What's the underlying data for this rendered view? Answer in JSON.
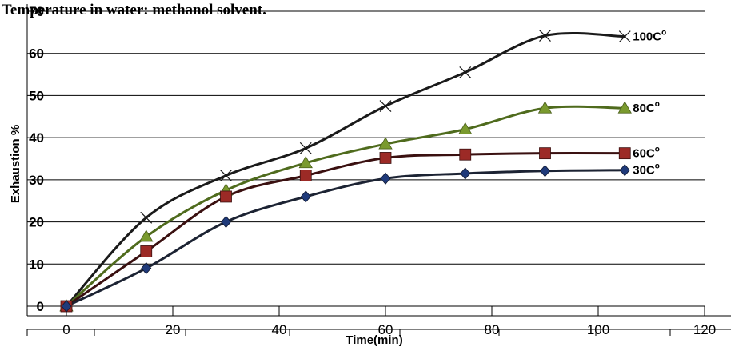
{
  "heading": "Temperature in water: methanol solvent.",
  "chart_data": {
    "type": "line",
    "xlabel": "Time(min)",
    "ylabel": "Exhaustion %",
    "xlim": [
      0,
      120
    ],
    "ylim": [
      0,
      70
    ],
    "xticks": [
      "0",
      "20",
      "40",
      "60",
      "80",
      "100",
      "120"
    ],
    "yticks": [
      "0",
      "10",
      "20",
      "30",
      "40",
      "50",
      "60",
      "70"
    ],
    "grid": "horizontal",
    "series": [
      {
        "name": "100C",
        "label_main": "100C",
        "label_sup": "o",
        "color": "#1a1a1a",
        "marker": "x",
        "x": [
          0,
          15,
          30,
          45,
          60,
          75,
          90,
          105
        ],
        "y": [
          0,
          21,
          31,
          37.5,
          47.5,
          55.5,
          64.2,
          64
        ]
      },
      {
        "name": "80C",
        "label_main": "80C",
        "label_sup": "o",
        "color": "#4f6b1d",
        "marker_color": "#7a9a2e",
        "marker": "triangle",
        "x": [
          0,
          15,
          30,
          45,
          60,
          75,
          90,
          105
        ],
        "y": [
          0,
          16.5,
          27.5,
          34,
          38.5,
          42,
          47,
          47
        ]
      },
      {
        "name": "60C",
        "label_main": "60C",
        "label_sup": "o",
        "color": "#3a1010",
        "marker_color": "#9c2a26",
        "marker": "square",
        "x": [
          0,
          15,
          30,
          45,
          60,
          75,
          90,
          105
        ],
        "y": [
          0,
          13,
          26,
          31,
          35.2,
          36,
          36.3,
          36.3
        ]
      },
      {
        "name": "30C",
        "label_main": "30C",
        "label_sup": "o",
        "color": "#1c2333",
        "marker_color": "#1f3a7a",
        "marker": "diamond",
        "x": [
          0,
          15,
          30,
          45,
          60,
          75,
          90,
          105
        ],
        "y": [
          0,
          9,
          20,
          26,
          30.3,
          31.5,
          32.1,
          32.3
        ]
      }
    ]
  }
}
